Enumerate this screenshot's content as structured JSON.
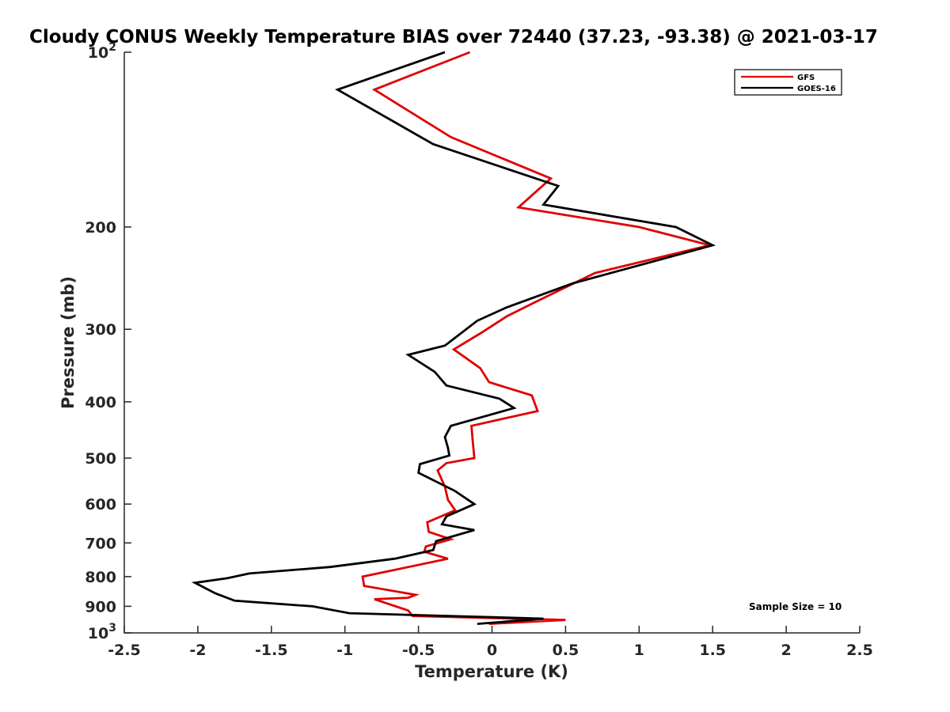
{
  "chart_data": {
    "type": "line",
    "title": "Cloudy CONUS Weekly Temperature BIAS over 72440 (37.23, -93.38) @ 2021-03-17",
    "xlabel": "Temperature (K)",
    "ylabel": "Pressure (mb)",
    "xlim": [
      -2.5,
      2.5
    ],
    "ylim": [
      100,
      1000
    ],
    "y_scale": "log",
    "y_reversed": true,
    "x_ticks": [
      -2.5,
      -2,
      -1.5,
      -1,
      -0.5,
      0,
      0.5,
      1,
      1.5,
      2,
      2.5
    ],
    "x_tick_labels": [
      "-2.5",
      "-2",
      "-1.5",
      "-1",
      "-0.5",
      "0",
      "0.5",
      "1",
      "1.5",
      "2",
      "2.5"
    ],
    "y_ticks": [
      100,
      200,
      300,
      400,
      500,
      600,
      700,
      800,
      900,
      1000
    ],
    "y_tick_labels": [
      {
        "base": "10",
        "exp": "2"
      },
      {
        "base": "200",
        "exp": ""
      },
      {
        "base": "300",
        "exp": ""
      },
      {
        "base": "400",
        "exp": ""
      },
      {
        "base": "500",
        "exp": ""
      },
      {
        "base": "600",
        "exp": ""
      },
      {
        "base": "700",
        "exp": ""
      },
      {
        "base": "800",
        "exp": ""
      },
      {
        "base": "900",
        "exp": ""
      },
      {
        "base": "10",
        "exp": "3"
      }
    ],
    "grid": false,
    "legend_position": "top-right",
    "series": [
      {
        "name": "GFS",
        "color": "#e00000",
        "points": [
          [
            -0.15,
            100
          ],
          [
            -0.8,
            116
          ],
          [
            -0.28,
            140
          ],
          [
            0.4,
            165
          ],
          [
            0.18,
            185
          ],
          [
            1.0,
            200
          ],
          [
            1.48,
            215
          ],
          [
            0.7,
            240
          ],
          [
            0.35,
            265
          ],
          [
            0.1,
            285
          ],
          [
            -0.08,
            305
          ],
          [
            -0.26,
            325
          ],
          [
            -0.08,
            350
          ],
          [
            -0.02,
            370
          ],
          [
            0.27,
            390
          ],
          [
            0.31,
            415
          ],
          [
            -0.14,
            440
          ],
          [
            -0.13,
            470
          ],
          [
            -0.12,
            500
          ],
          [
            -0.31,
            510
          ],
          [
            -0.37,
            525
          ],
          [
            -0.32,
            560
          ],
          [
            -0.3,
            590
          ],
          [
            -0.25,
            615
          ],
          [
            -0.44,
            645
          ],
          [
            -0.43,
            670
          ],
          [
            -0.28,
            690
          ],
          [
            -0.45,
            710
          ],
          [
            -0.46,
            725
          ],
          [
            -0.3,
            745
          ],
          [
            -0.88,
            800
          ],
          [
            -0.87,
            830
          ],
          [
            -0.52,
            860
          ],
          [
            -0.57,
            870
          ],
          [
            -0.8,
            875
          ],
          [
            -0.57,
            915
          ],
          [
            -0.54,
            935
          ],
          [
            0.5,
            950
          ],
          [
            -0.02,
            965
          ]
        ]
      },
      {
        "name": "GOES-16",
        "color": "#000000",
        "points": [
          [
            -0.32,
            100
          ],
          [
            -1.05,
            116
          ],
          [
            -0.4,
            144
          ],
          [
            0.45,
            170
          ],
          [
            0.35,
            183
          ],
          [
            1.25,
            200
          ],
          [
            1.5,
            215
          ],
          [
            0.55,
            250
          ],
          [
            0.1,
            275
          ],
          [
            -0.1,
            290
          ],
          [
            -0.32,
            320
          ],
          [
            -0.57,
            332
          ],
          [
            -0.39,
            355
          ],
          [
            -0.31,
            375
          ],
          [
            0.05,
            395
          ],
          [
            0.15,
            410
          ],
          [
            -0.28,
            440
          ],
          [
            -0.32,
            460
          ],
          [
            -0.3,
            480
          ],
          [
            -0.29,
            495
          ],
          [
            -0.49,
            512
          ],
          [
            -0.5,
            530
          ],
          [
            -0.25,
            570
          ],
          [
            -0.12,
            600
          ],
          [
            -0.31,
            630
          ],
          [
            -0.34,
            650
          ],
          [
            -0.12,
            665
          ],
          [
            -0.38,
            695
          ],
          [
            -0.4,
            720
          ],
          [
            -0.66,
            745
          ],
          [
            -1.1,
            770
          ],
          [
            -1.65,
            790
          ],
          [
            -1.8,
            805
          ],
          [
            -2.02,
            820
          ],
          [
            -1.88,
            855
          ],
          [
            -1.75,
            880
          ],
          [
            -1.22,
            900
          ],
          [
            -0.97,
            925
          ],
          [
            0.35,
            945
          ],
          [
            -0.1,
            965
          ]
        ]
      }
    ],
    "annotations": [
      {
        "text": "Sample Size = 10",
        "x": 1.75,
        "y": 900
      }
    ]
  }
}
